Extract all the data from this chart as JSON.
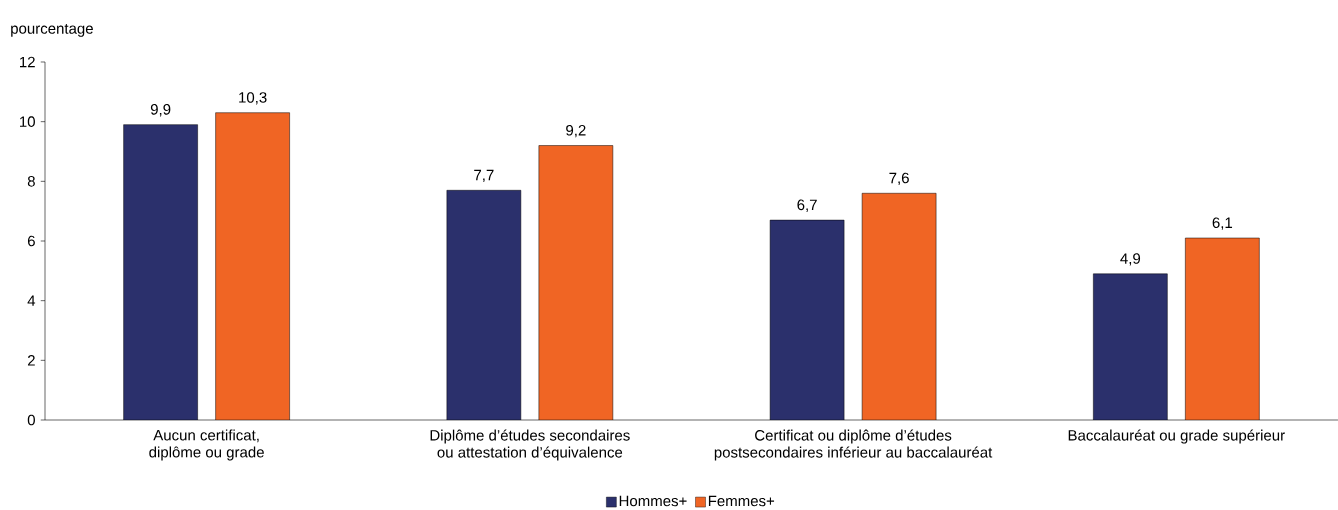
{
  "chart_data": {
    "type": "bar",
    "ylabel": "pourcentage",
    "categories": [
      "Aucun certificat, diplôme ou grade",
      "Diplôme d’études secondaires ou attestation d’équivalence",
      "Certificat ou diplôme d’études postsecondaires inférieur au baccalauréat",
      "Baccalauréat ou grade supérieur"
    ],
    "series": [
      {
        "name": "Hommes+",
        "color": "#2b306c",
        "values": [
          9.9,
          7.7,
          6.7,
          4.9
        ],
        "value_labels": [
          "9,9",
          "7,7",
          "6,7",
          "4,9"
        ]
      },
      {
        "name": "Femmes+",
        "color": "#f06524",
        "values": [
          10.3,
          9.2,
          7.6,
          6.1
        ],
        "value_labels": [
          "10,3",
          "9,2",
          "7,6",
          "6,1"
        ]
      }
    ],
    "ylim": [
      0,
      12
    ],
    "yticks": [
      0,
      2,
      4,
      6,
      8,
      10,
      12
    ],
    "legend": "bottom",
    "grid": false
  }
}
